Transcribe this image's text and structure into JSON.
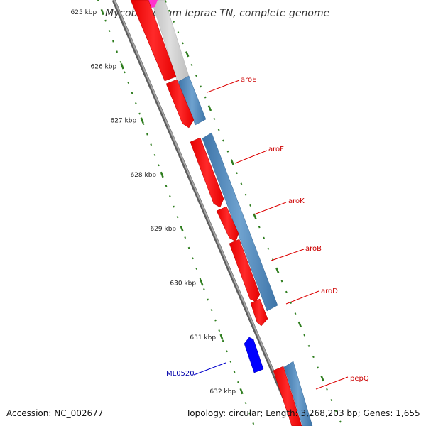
{
  "title": "Mycobacterium leprae TN, complete genome",
  "footer": {
    "accession": "Accession: NC_002677",
    "summary": "Topology: circular; Length: 3,268,203 bp; Genes: 1,655"
  },
  "scale": {
    "ticks": [
      {
        "kbp": 625,
        "label": "625 kbp"
      },
      {
        "kbp": 626,
        "label": "626 kbp"
      },
      {
        "kbp": 627,
        "label": "627 kbp"
      },
      {
        "kbp": 628,
        "label": "628 kbp"
      },
      {
        "kbp": 629,
        "label": "629 kbp"
      },
      {
        "kbp": 630,
        "label": "630 kbp"
      },
      {
        "kbp": 631,
        "label": "631 kbp"
      },
      {
        "kbp": 632,
        "label": "632 kbp"
      }
    ]
  },
  "genes": [
    {
      "name": "aroE",
      "strand": "+",
      "color": "#cc0000"
    },
    {
      "name": "aroF",
      "strand": "+",
      "color": "#cc0000"
    },
    {
      "name": "aroK",
      "strand": "+",
      "color": "#cc0000"
    },
    {
      "name": "aroB",
      "strand": "+",
      "color": "#cc0000"
    },
    {
      "name": "aroD",
      "strand": "+",
      "color": "#cc0000"
    },
    {
      "name": "ML0520",
      "strand": "-",
      "color": "#0000aa"
    },
    {
      "name": "pepQ",
      "strand": "+",
      "color": "#cc0000"
    }
  ],
  "colors": {
    "cds": "#ff0000",
    "orf": "#0000ff",
    "gene_track": "#4f86b8",
    "gene_track_faded": "#c8c8c8",
    "backbone": "#808080",
    "tick": "#2e7d1e",
    "pink_feature": "#ff33cc"
  }
}
